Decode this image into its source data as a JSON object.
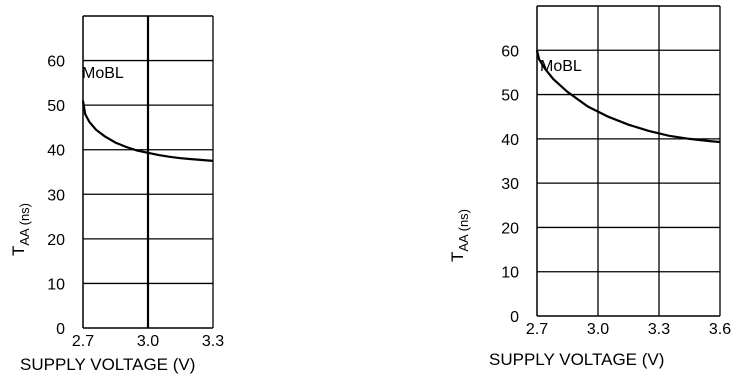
{
  "chart_data": [
    {
      "type": "line",
      "xlabel": "SUPPLY VOLTAGE (V)",
      "ylabel_main": "T",
      "ylabel_sub": "AA (ns)",
      "xlim": [
        2.7,
        3.3
      ],
      "ylim": [
        0,
        70
      ],
      "x_ticks": [
        "2.7",
        "3.0",
        "3.3"
      ],
      "y_ticks": [
        "0",
        "10",
        "20",
        "30",
        "40",
        "50",
        "60"
      ],
      "grid": true,
      "annotation": "MoBL",
      "series": [
        {
          "x": [
            2.7,
            2.71,
            2.73,
            2.76,
            2.8,
            2.85,
            2.9,
            2.95,
            3.0,
            3.05,
            3.1,
            3.15,
            3.2,
            3.25,
            3.3
          ],
          "values": [
            51,
            48,
            46.2,
            44.5,
            43,
            41.6,
            40.6,
            39.8,
            39.3,
            38.8,
            38.4,
            38.1,
            37.9,
            37.7,
            37.5
          ]
        }
      ]
    },
    {
      "type": "line",
      "xlabel": "SUPPLY VOLTAGE (V)",
      "ylabel_main": "T",
      "ylabel_sub": "AA (ns)",
      "xlim": [
        2.7,
        3.6
      ],
      "ylim": [
        0,
        70
      ],
      "x_ticks": [
        "2.7",
        "3.0",
        "3.3",
        "3.6"
      ],
      "y_ticks": [
        "0",
        "10",
        "20",
        "30",
        "40",
        "50",
        "60"
      ],
      "grid": true,
      "annotation": "MoBL",
      "series": [
        {
          "x": [
            2.7,
            2.71,
            2.74,
            2.78,
            2.85,
            2.95,
            3.05,
            3.15,
            3.25,
            3.35,
            3.45,
            3.55,
            3.6
          ],
          "values": [
            60,
            58,
            55.8,
            53.5,
            50.6,
            47.3,
            45,
            43.2,
            41.8,
            40.7,
            40,
            39.5,
            39.3
          ]
        }
      ]
    }
  ]
}
